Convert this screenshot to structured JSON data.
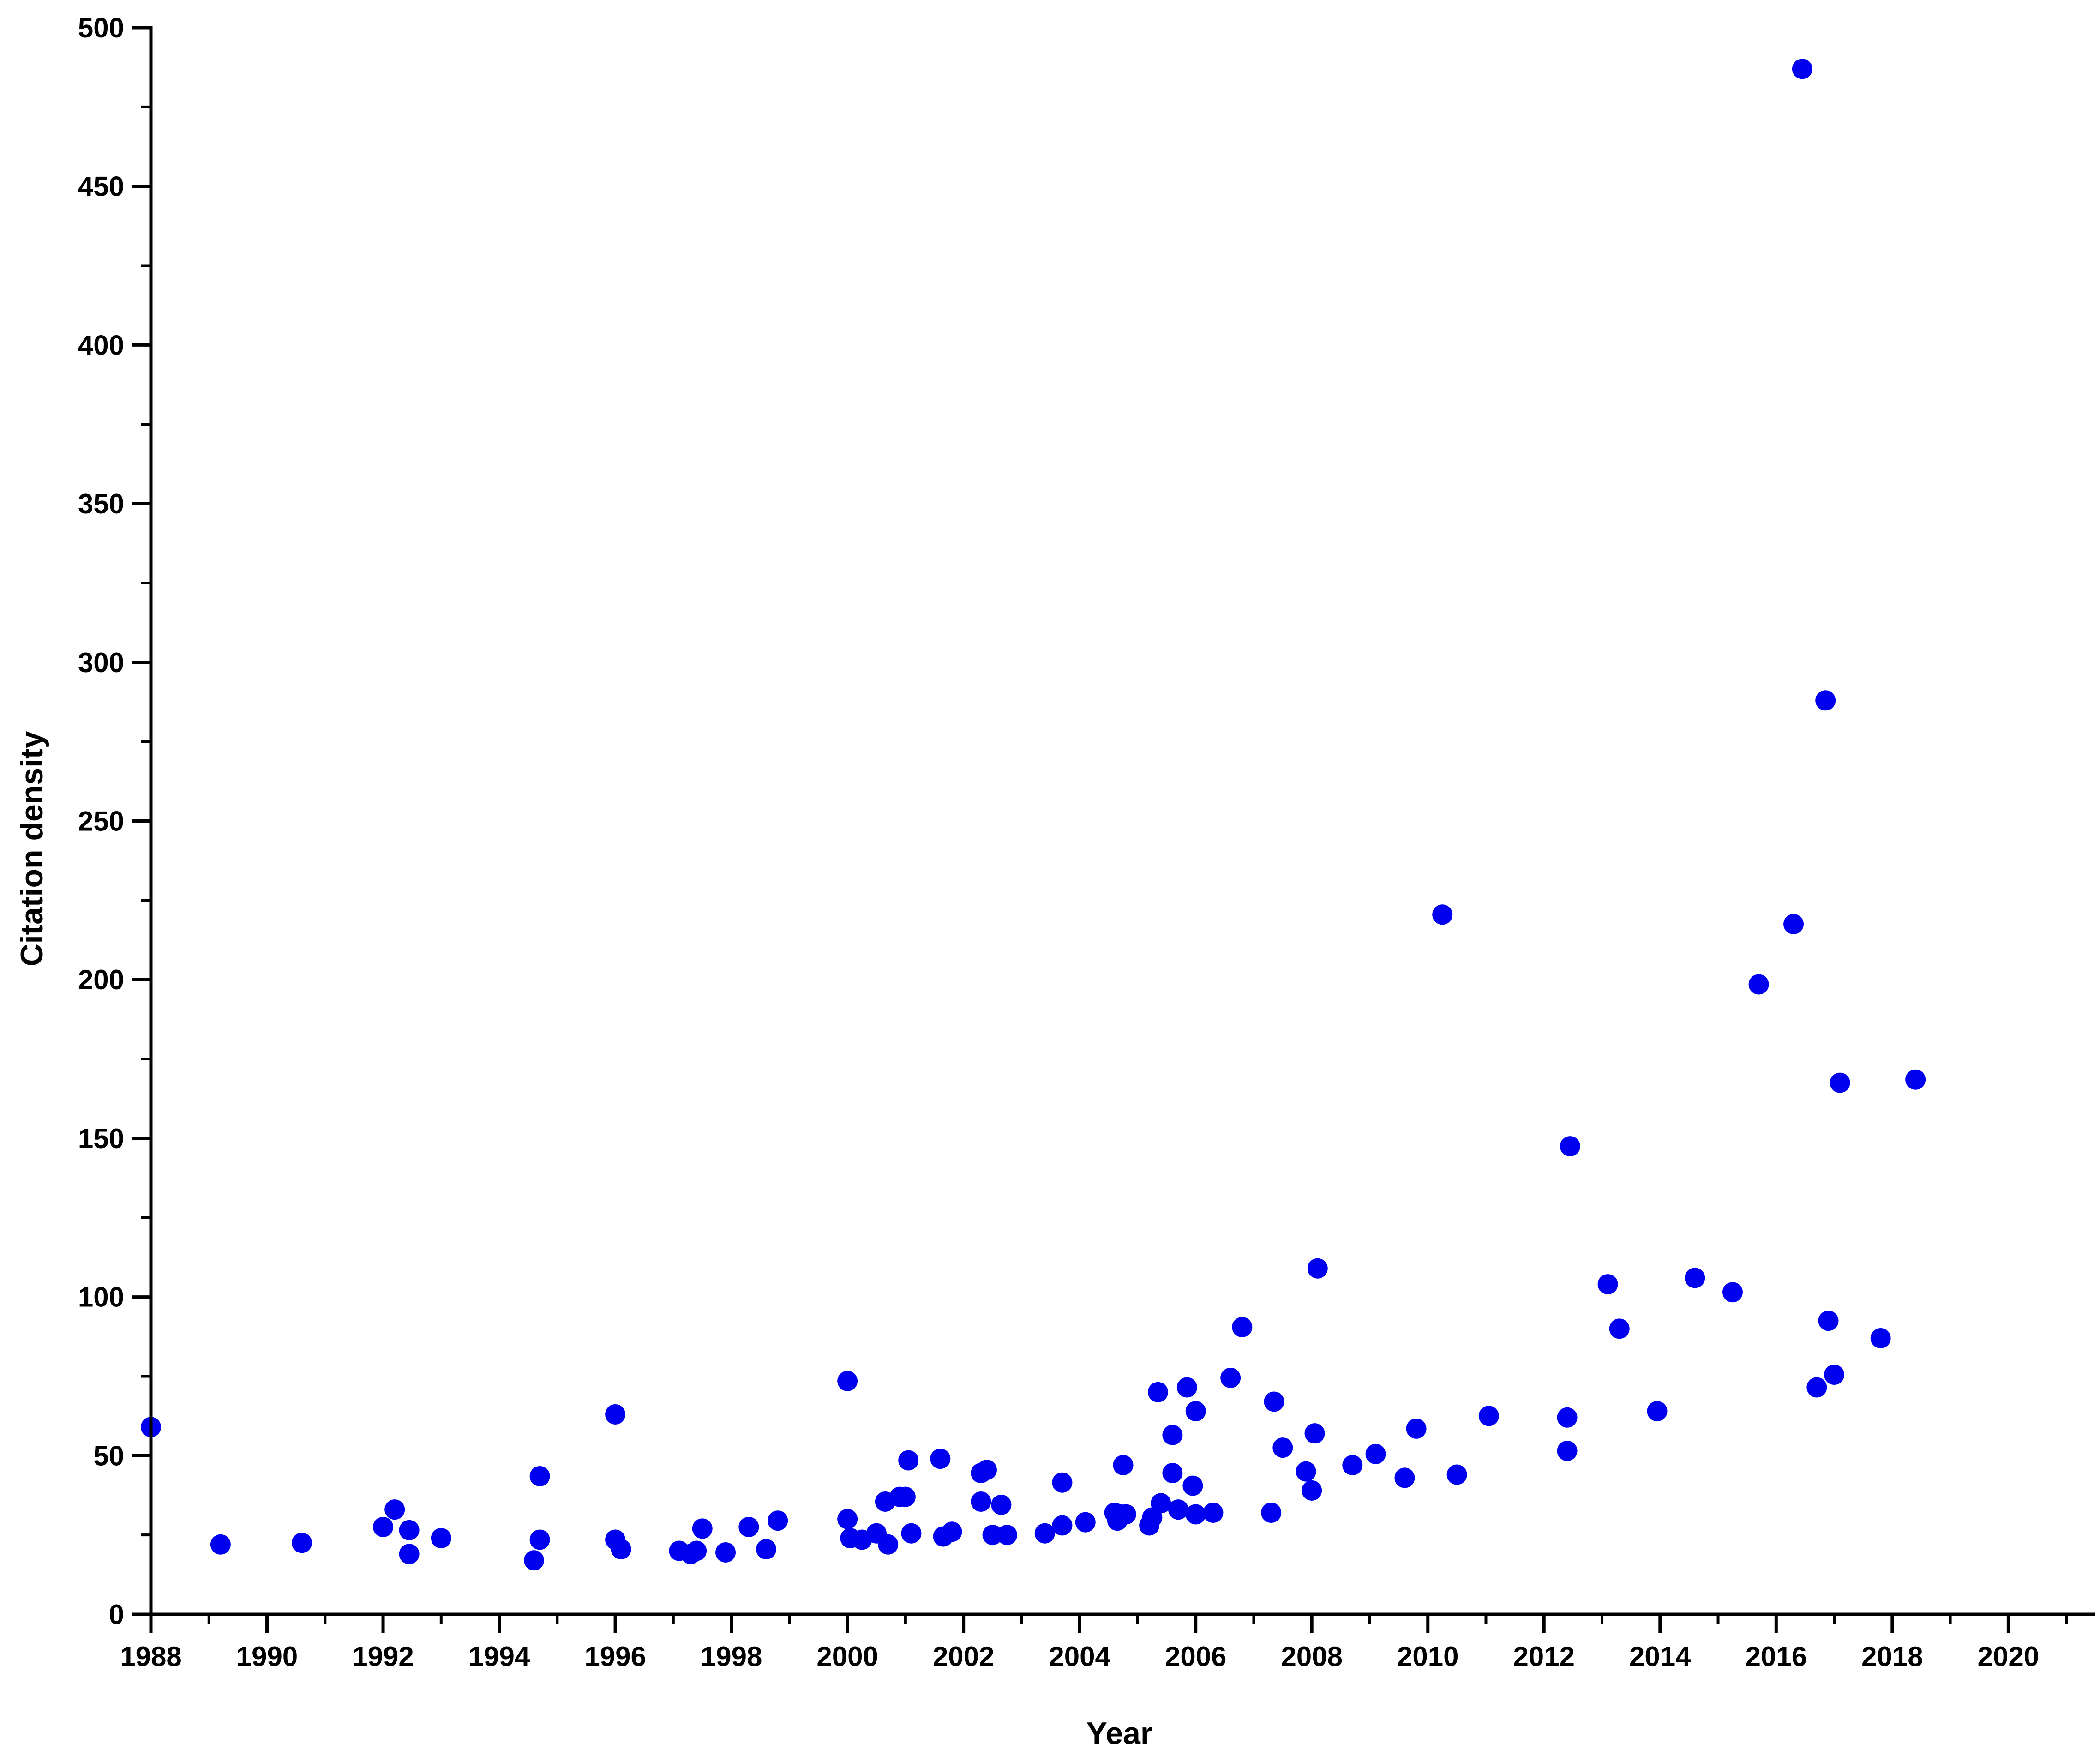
{
  "chart_data": {
    "type": "scatter",
    "title": "",
    "xlabel": "Year",
    "ylabel": "Citation density",
    "xlim": [
      1988,
      2021.5
    ],
    "ylim": [
      0,
      500
    ],
    "xticks": [
      1988,
      1990,
      1992,
      1994,
      1996,
      1998,
      2000,
      2002,
      2004,
      2006,
      2008,
      2010,
      2012,
      2014,
      2016,
      2018,
      2020
    ],
    "yticks": [
      0,
      50,
      100,
      150,
      200,
      250,
      300,
      350,
      400,
      450,
      500
    ],
    "grid": false,
    "legend": false,
    "marker_color": "#0000ee",
    "series": [
      {
        "points": [
          [
            1988.0,
            59
          ],
          [
            1989.2,
            22
          ],
          [
            1990.6,
            22.5
          ],
          [
            1992.0,
            27.5
          ],
          [
            1992.2,
            33
          ],
          [
            1992.45,
            26.5
          ],
          [
            1992.45,
            19
          ],
          [
            1993.0,
            24
          ],
          [
            1994.6,
            17
          ],
          [
            1994.7,
            43.5
          ],
          [
            1994.7,
            23.5
          ],
          [
            1996.0,
            63
          ],
          [
            1996.0,
            23.5
          ],
          [
            1996.1,
            20.5
          ],
          [
            1997.1,
            20
          ],
          [
            1997.3,
            19
          ],
          [
            1997.4,
            20
          ],
          [
            1997.5,
            27
          ],
          [
            1997.9,
            19.5
          ],
          [
            1998.3,
            27.5
          ],
          [
            1998.6,
            20.5
          ],
          [
            1998.8,
            29.5
          ],
          [
            2000.0,
            73.5
          ],
          [
            2000.0,
            30
          ],
          [
            2000.05,
            24
          ],
          [
            2000.25,
            23.5
          ],
          [
            2000.5,
            25.5
          ],
          [
            2000.65,
            35.5
          ],
          [
            2000.7,
            22
          ],
          [
            2000.9,
            37
          ],
          [
            2001.0,
            37
          ],
          [
            2001.05,
            48.5
          ],
          [
            2001.1,
            25.5
          ],
          [
            2001.6,
            49
          ],
          [
            2001.65,
            24.5
          ],
          [
            2001.8,
            26
          ],
          [
            2002.3,
            44.5
          ],
          [
            2002.3,
            35.5
          ],
          [
            2002.4,
            45.5
          ],
          [
            2002.5,
            25
          ],
          [
            2002.65,
            34.5
          ],
          [
            2002.75,
            25
          ],
          [
            2003.4,
            25.5
          ],
          [
            2003.7,
            28
          ],
          [
            2003.7,
            41.5
          ],
          [
            2004.1,
            29
          ],
          [
            2004.6,
            32
          ],
          [
            2004.65,
            29.5
          ],
          [
            2004.7,
            31.5
          ],
          [
            2004.75,
            47
          ],
          [
            2004.8,
            31.5
          ],
          [
            2005.2,
            28
          ],
          [
            2005.25,
            30.5
          ],
          [
            2005.35,
            70
          ],
          [
            2005.4,
            35
          ],
          [
            2005.6,
            44.5
          ],
          [
            2005.6,
            56.5
          ],
          [
            2005.7,
            33
          ],
          [
            2005.85,
            71.5
          ],
          [
            2005.95,
            40.5
          ],
          [
            2006.0,
            31.5
          ],
          [
            2006.0,
            64
          ],
          [
            2006.3,
            32
          ],
          [
            2006.6,
            74.5
          ],
          [
            2006.8,
            90.5
          ],
          [
            2007.3,
            32
          ],
          [
            2007.35,
            67
          ],
          [
            2007.5,
            52.5
          ],
          [
            2007.9,
            45
          ],
          [
            2008.0,
            39
          ],
          [
            2008.05,
            57
          ],
          [
            2008.1,
            109
          ],
          [
            2008.7,
            47
          ],
          [
            2009.1,
            50.5
          ],
          [
            2009.6,
            43
          ],
          [
            2009.8,
            58.5
          ],
          [
            2010.25,
            220.5
          ],
          [
            2010.5,
            44
          ],
          [
            2011.05,
            62.5
          ],
          [
            2012.4,
            62
          ],
          [
            2012.4,
            51.5
          ],
          [
            2012.45,
            147.5
          ],
          [
            2013.1,
            104
          ],
          [
            2013.3,
            90
          ],
          [
            2013.95,
            64
          ],
          [
            2014.6,
            106
          ],
          [
            2015.25,
            101.5
          ],
          [
            2015.7,
            198.5
          ],
          [
            2016.3,
            217.5
          ],
          [
            2016.45,
            487
          ],
          [
            2016.7,
            71.5
          ],
          [
            2016.85,
            288
          ],
          [
            2016.9,
            92.5
          ],
          [
            2017.0,
            75.5
          ],
          [
            2017.1,
            167.5
          ],
          [
            2017.8,
            87
          ],
          [
            2018.4,
            168.5
          ]
        ]
      }
    ]
  }
}
